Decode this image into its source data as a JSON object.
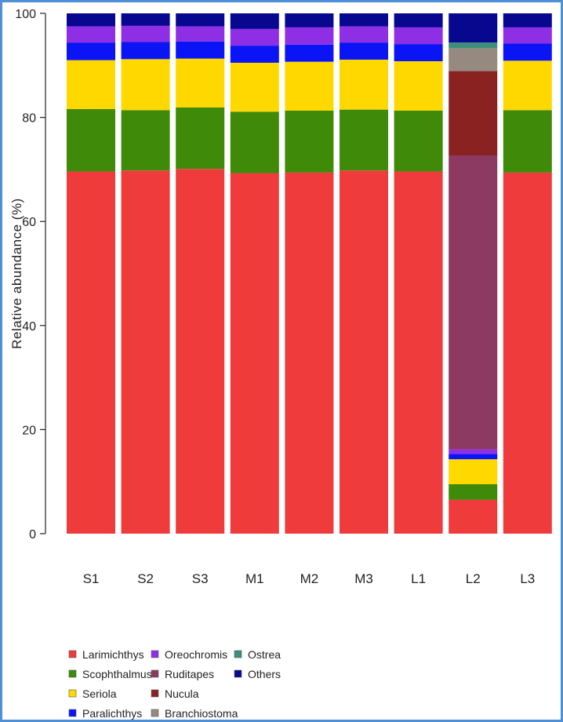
{
  "chart_data": {
    "type": "bar",
    "stacked": true,
    "ylabel": "Relative abundance (%)",
    "xlabel": "",
    "ylim": [
      0,
      100
    ],
    "yticks": [
      0,
      20,
      40,
      60,
      80,
      100
    ],
    "categories": [
      "S1",
      "S2",
      "S3",
      "M1",
      "M2",
      "M3",
      "L1",
      "L2",
      "L3"
    ],
    "legend_position": "bottom-left",
    "series": [
      {
        "name": "Larimichthys",
        "color": "#ef3b3b",
        "values": [
          69.6,
          69.8,
          70.1,
          69.3,
          69.4,
          69.8,
          69.6,
          6.5,
          69.4
        ]
      },
      {
        "name": "Scophthalmus",
        "color": "#3f8a08",
        "values": [
          12.0,
          11.6,
          11.8,
          11.8,
          11.9,
          11.7,
          11.7,
          3.0,
          12.0
        ]
      },
      {
        "name": "Seriola",
        "color": "#ffd800",
        "values": [
          9.4,
          9.8,
          9.4,
          9.4,
          9.4,
          9.6,
          9.5,
          4.8,
          9.5
        ]
      },
      {
        "name": "Paralichthys",
        "color": "#0b14f5",
        "values": [
          3.4,
          3.3,
          3.3,
          3.3,
          3.3,
          3.3,
          3.3,
          1.0,
          3.3
        ]
      },
      {
        "name": "Oreochromis",
        "color": "#8e2fe6",
        "values": [
          3.1,
          3.1,
          2.9,
          3.2,
          3.3,
          3.1,
          3.2,
          0.9,
          3.1
        ]
      },
      {
        "name": "Ruditapes",
        "color": "#8c3a62",
        "values": [
          0,
          0,
          0,
          0,
          0,
          0,
          0,
          56.5,
          0
        ]
      },
      {
        "name": "Nucula",
        "color": "#8a2222",
        "values": [
          0,
          0,
          0,
          0,
          0,
          0,
          0,
          16.2,
          0
        ]
      },
      {
        "name": "Branchiostoma",
        "color": "#968a80",
        "values": [
          0,
          0,
          0,
          0,
          0,
          0,
          0,
          4.4,
          0
        ]
      },
      {
        "name": "Ostrea",
        "color": "#3c8f7a",
        "values": [
          0,
          0,
          0,
          0,
          0,
          0,
          0,
          1.1,
          0
        ]
      },
      {
        "name": "Others",
        "color": "#070790",
        "values": [
          2.5,
          2.4,
          2.5,
          3.0,
          2.7,
          2.5,
          2.7,
          5.6,
          2.7
        ]
      }
    ]
  }
}
